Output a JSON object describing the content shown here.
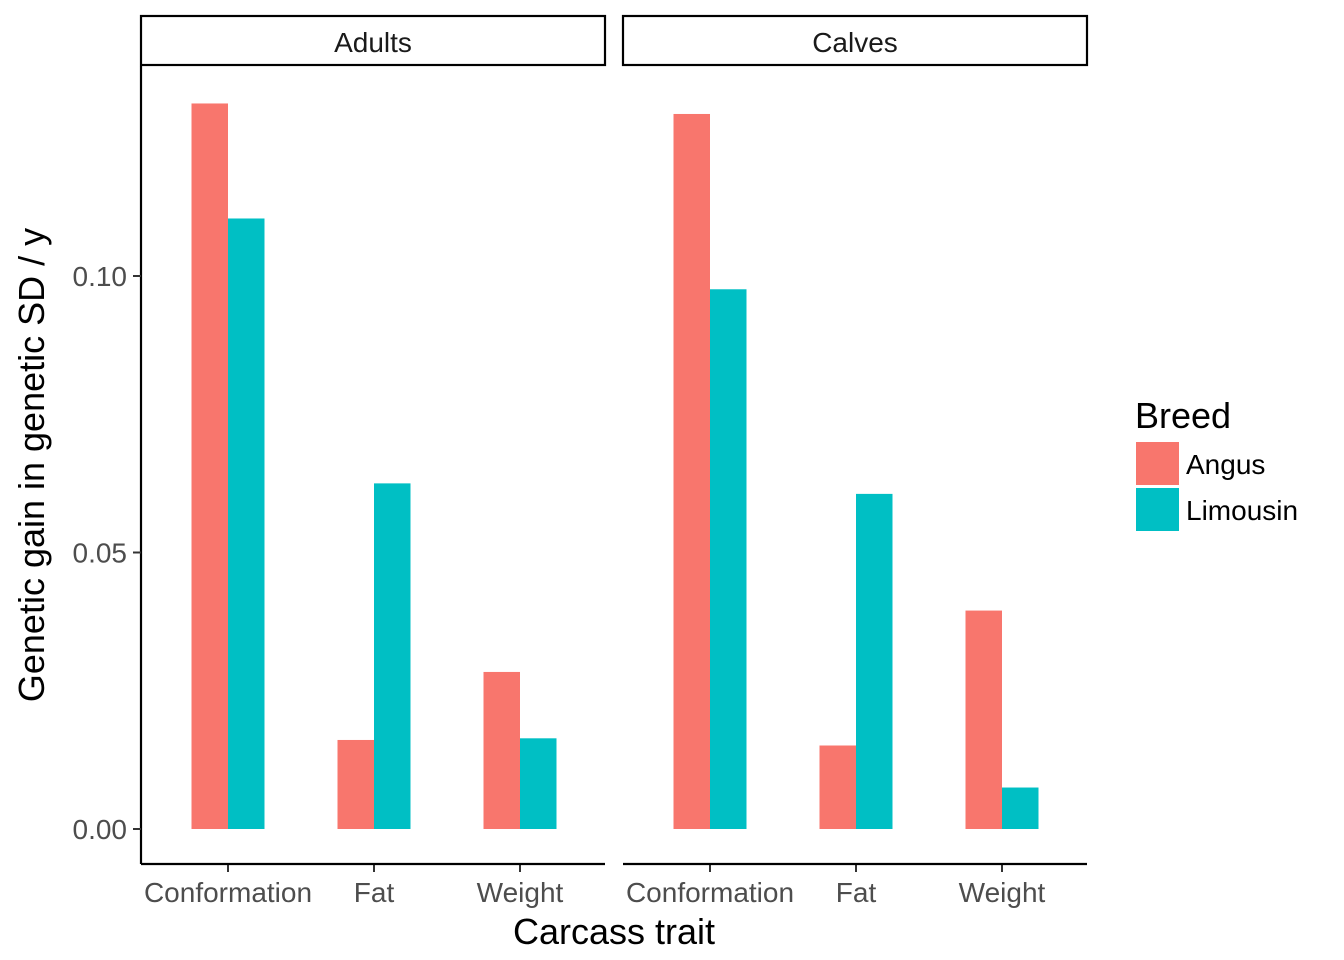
{
  "chart_data": {
    "type": "bar",
    "facet_labels": [
      "Adults",
      "Calves"
    ],
    "categories": [
      "Conformation",
      "Fat",
      "Weight"
    ],
    "series": [
      {
        "name": "Angus",
        "color": "#F8766D",
        "values": {
          "Adults": [
            0.1312,
            0.0161,
            0.0284
          ],
          "Calves": [
            0.1293,
            0.0151,
            0.0395
          ]
        }
      },
      {
        "name": "Limousin",
        "color": "#00BFC4",
        "values": {
          "Adults": [
            0.1104,
            0.0625,
            0.0164
          ],
          "Calves": [
            0.0976,
            0.0606,
            0.0075
          ]
        }
      }
    ],
    "xlabel": "Carcass trait",
    "ylabel": "Genetic gain in genetic SD / y",
    "ylim": [
      0,
      0.133
    ],
    "y_ticks": [
      0.0,
      0.05,
      0.1
    ],
    "y_tick_labels": [
      "0.00",
      "0.05",
      "0.10"
    ],
    "legend": {
      "title": "Breed",
      "position": "right",
      "items": [
        "Angus",
        "Limousin"
      ]
    },
    "grid": false
  }
}
